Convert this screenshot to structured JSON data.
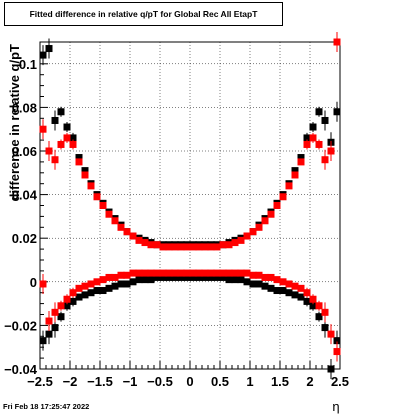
{
  "chart_data": {
    "type": "scatter",
    "title": "Fitted difference in relative q/pT for Global Rec All EtapT",
    "xlabel": "η",
    "ylabel": "difference in relative q/pT",
    "xlim": [
      -2.5,
      2.5
    ],
    "ylim": [
      -0.04,
      0.11
    ],
    "xticks": [
      -2.5,
      -2,
      -1.5,
      -1,
      -0.5,
      0,
      0.5,
      1,
      1.5,
      2,
      2.5
    ],
    "xtick_labels": [
      "−2.5",
      "−2",
      "−1.5",
      "−1",
      "−0.5",
      "0",
      "0.5",
      "1",
      "1.5",
      "2",
      "2.5"
    ],
    "yticks": [
      -0.04,
      -0.02,
      0,
      0.02,
      0.04,
      0.06,
      0.08,
      0.1
    ],
    "ytick_labels": [
      "−0.04",
      "−0.02",
      "0",
      "0.02",
      "0.04",
      "0.06",
      "0.08",
      "0.1"
    ],
    "grid": true,
    "colors": {
      "series_black": "#000000",
      "series_red": "#ff0000"
    },
    "series": [
      {
        "color": "#000000",
        "points": [
          [
            -2.45,
            0.104
          ],
          [
            -2.35,
            0.107
          ],
          [
            -2.25,
            0.074
          ],
          [
            -2.15,
            0.078
          ],
          [
            -2.05,
            0.071
          ],
          [
            -1.95,
            0.066
          ],
          [
            -1.85,
            0.057
          ],
          [
            -1.75,
            0.051
          ],
          [
            -1.65,
            0.045
          ],
          [
            -1.55,
            0.04
          ],
          [
            -1.45,
            0.036
          ],
          [
            -1.35,
            0.032
          ],
          [
            -1.25,
            0.029
          ],
          [
            -1.15,
            0.026
          ],
          [
            -1.05,
            0.023
          ],
          [
            -0.95,
            0.021
          ],
          [
            -0.85,
            0.02
          ],
          [
            -0.75,
            0.019
          ],
          [
            -0.65,
            0.018
          ],
          [
            -0.55,
            0.017
          ],
          [
            -0.45,
            0.017
          ],
          [
            -0.35,
            0.017
          ],
          [
            -0.25,
            0.017
          ],
          [
            -0.15,
            0.017
          ],
          [
            -0.05,
            0.017
          ],
          [
            0.05,
            0.017
          ],
          [
            0.15,
            0.017
          ],
          [
            0.25,
            0.017
          ],
          [
            0.35,
            0.017
          ],
          [
            0.45,
            0.017
          ],
          [
            0.55,
            0.017
          ],
          [
            0.65,
            0.018
          ],
          [
            0.75,
            0.019
          ],
          [
            0.85,
            0.02
          ],
          [
            0.95,
            0.021
          ],
          [
            1.05,
            0.023
          ],
          [
            1.15,
            0.026
          ],
          [
            1.25,
            0.029
          ],
          [
            1.35,
            0.032
          ],
          [
            1.45,
            0.036
          ],
          [
            1.55,
            0.04
          ],
          [
            1.65,
            0.045
          ],
          [
            1.75,
            0.051
          ],
          [
            1.85,
            0.057
          ],
          [
            1.95,
            0.066
          ],
          [
            2.05,
            0.071
          ],
          [
            2.15,
            0.078
          ],
          [
            2.25,
            0.074
          ],
          [
            2.35,
            0.064
          ],
          [
            2.45,
            0.078
          ],
          [
            -2.45,
            -0.027
          ],
          [
            -2.35,
            -0.024
          ],
          [
            -2.25,
            -0.021
          ],
          [
            -2.15,
            -0.016
          ],
          [
            -2.05,
            -0.011
          ],
          [
            -1.95,
            -0.009
          ],
          [
            -1.85,
            -0.007
          ],
          [
            -1.75,
            -0.006
          ],
          [
            -1.65,
            -0.005
          ],
          [
            -1.55,
            -0.004
          ],
          [
            -1.45,
            -0.004
          ],
          [
            -1.35,
            -0.003
          ],
          [
            -1.25,
            -0.002
          ],
          [
            -1.15,
            -0.001
          ],
          [
            -1.05,
            -0.001
          ],
          [
            -0.95,
            0.0
          ],
          [
            -0.85,
            0.001
          ],
          [
            -0.75,
            0.001
          ],
          [
            -0.65,
            0.001
          ],
          [
            -0.55,
            0.002
          ],
          [
            -0.45,
            0.002
          ],
          [
            -0.35,
            0.002
          ],
          [
            -0.25,
            0.002
          ],
          [
            -0.15,
            0.002
          ],
          [
            -0.05,
            0.002
          ],
          [
            0.05,
            0.002
          ],
          [
            0.15,
            0.002
          ],
          [
            0.25,
            0.002
          ],
          [
            0.35,
            0.002
          ],
          [
            0.45,
            0.002
          ],
          [
            0.55,
            0.002
          ],
          [
            0.65,
            0.001
          ],
          [
            0.75,
            0.001
          ],
          [
            0.85,
            0.001
          ],
          [
            0.95,
            0.0
          ],
          [
            1.05,
            -0.001
          ],
          [
            1.15,
            -0.001
          ],
          [
            1.25,
            -0.002
          ],
          [
            1.35,
            -0.003
          ],
          [
            1.45,
            -0.004
          ],
          [
            1.55,
            -0.004
          ],
          [
            1.65,
            -0.005
          ],
          [
            1.75,
            -0.006
          ],
          [
            1.85,
            -0.007
          ],
          [
            1.95,
            -0.009
          ],
          [
            2.05,
            -0.011
          ],
          [
            2.15,
            -0.016
          ],
          [
            2.25,
            -0.021
          ],
          [
            2.35,
            -0.04
          ],
          [
            2.45,
            -0.027
          ]
        ]
      },
      {
        "color": "#ff0000",
        "points": [
          [
            -2.45,
            0.07
          ],
          [
            -2.35,
            0.06
          ],
          [
            -2.25,
            0.056
          ],
          [
            -2.15,
            0.063
          ],
          [
            -2.05,
            0.066
          ],
          [
            -1.95,
            0.063
          ],
          [
            -1.85,
            0.055
          ],
          [
            -1.75,
            0.049
          ],
          [
            -1.65,
            0.044
          ],
          [
            -1.55,
            0.039
          ],
          [
            -1.45,
            0.035
          ],
          [
            -1.35,
            0.031
          ],
          [
            -1.25,
            0.028
          ],
          [
            -1.15,
            0.025
          ],
          [
            -1.05,
            0.023
          ],
          [
            -0.95,
            0.021
          ],
          [
            -0.85,
            0.019
          ],
          [
            -0.75,
            0.018
          ],
          [
            -0.65,
            0.017
          ],
          [
            -0.55,
            0.017
          ],
          [
            -0.45,
            0.016
          ],
          [
            -0.35,
            0.016
          ],
          [
            -0.25,
            0.016
          ],
          [
            -0.15,
            0.016
          ],
          [
            -0.05,
            0.016
          ],
          [
            0.05,
            0.016
          ],
          [
            0.15,
            0.016
          ],
          [
            0.25,
            0.016
          ],
          [
            0.35,
            0.016
          ],
          [
            0.45,
            0.016
          ],
          [
            0.55,
            0.017
          ],
          [
            0.65,
            0.017
          ],
          [
            0.75,
            0.018
          ],
          [
            0.85,
            0.019
          ],
          [
            0.95,
            0.021
          ],
          [
            1.05,
            0.023
          ],
          [
            1.15,
            0.025
          ],
          [
            1.25,
            0.028
          ],
          [
            1.35,
            0.031
          ],
          [
            1.45,
            0.035
          ],
          [
            1.55,
            0.039
          ],
          [
            1.65,
            0.044
          ],
          [
            1.75,
            0.049
          ],
          [
            1.85,
            0.055
          ],
          [
            1.95,
            0.063
          ],
          [
            2.05,
            0.066
          ],
          [
            2.15,
            0.063
          ],
          [
            2.25,
            0.056
          ],
          [
            2.35,
            0.06
          ],
          [
            2.45,
            0.11
          ],
          [
            -2.45,
            -0.001
          ],
          [
            -2.35,
            -0.018
          ],
          [
            -2.25,
            -0.014
          ],
          [
            -2.15,
            -0.011
          ],
          [
            -2.05,
            -0.008
          ],
          [
            -1.95,
            -0.005
          ],
          [
            -1.85,
            -0.003
          ],
          [
            -1.75,
            -0.002
          ],
          [
            -1.65,
            -0.001
          ],
          [
            -1.55,
            0.0
          ],
          [
            -1.45,
            0.001
          ],
          [
            -1.35,
            0.002
          ],
          [
            -1.25,
            0.002
          ],
          [
            -1.15,
            0.003
          ],
          [
            -1.05,
            0.003
          ],
          [
            -0.95,
            0.004
          ],
          [
            -0.85,
            0.004
          ],
          [
            -0.75,
            0.004
          ],
          [
            -0.65,
            0.004
          ],
          [
            -0.55,
            0.004
          ],
          [
            -0.45,
            0.004
          ],
          [
            -0.35,
            0.004
          ],
          [
            -0.25,
            0.004
          ],
          [
            -0.15,
            0.004
          ],
          [
            -0.05,
            0.004
          ],
          [
            0.05,
            0.004
          ],
          [
            0.15,
            0.004
          ],
          [
            0.25,
            0.004
          ],
          [
            0.35,
            0.004
          ],
          [
            0.45,
            0.004
          ],
          [
            0.55,
            0.004
          ],
          [
            0.65,
            0.004
          ],
          [
            0.75,
            0.004
          ],
          [
            0.85,
            0.004
          ],
          [
            0.95,
            0.004
          ],
          [
            1.05,
            0.003
          ],
          [
            1.15,
            0.003
          ],
          [
            1.25,
            0.002
          ],
          [
            1.35,
            0.002
          ],
          [
            1.45,
            0.001
          ],
          [
            1.55,
            0.0
          ],
          [
            1.65,
            -0.001
          ],
          [
            1.75,
            -0.002
          ],
          [
            1.85,
            -0.003
          ],
          [
            1.95,
            -0.005
          ],
          [
            2.05,
            -0.008
          ],
          [
            2.15,
            -0.011
          ],
          [
            2.25,
            -0.014
          ],
          [
            2.35,
            -0.024
          ],
          [
            2.45,
            -0.032
          ]
        ]
      }
    ]
  },
  "footer": {
    "date": "Fri Feb 18 17:25:47 2022"
  }
}
